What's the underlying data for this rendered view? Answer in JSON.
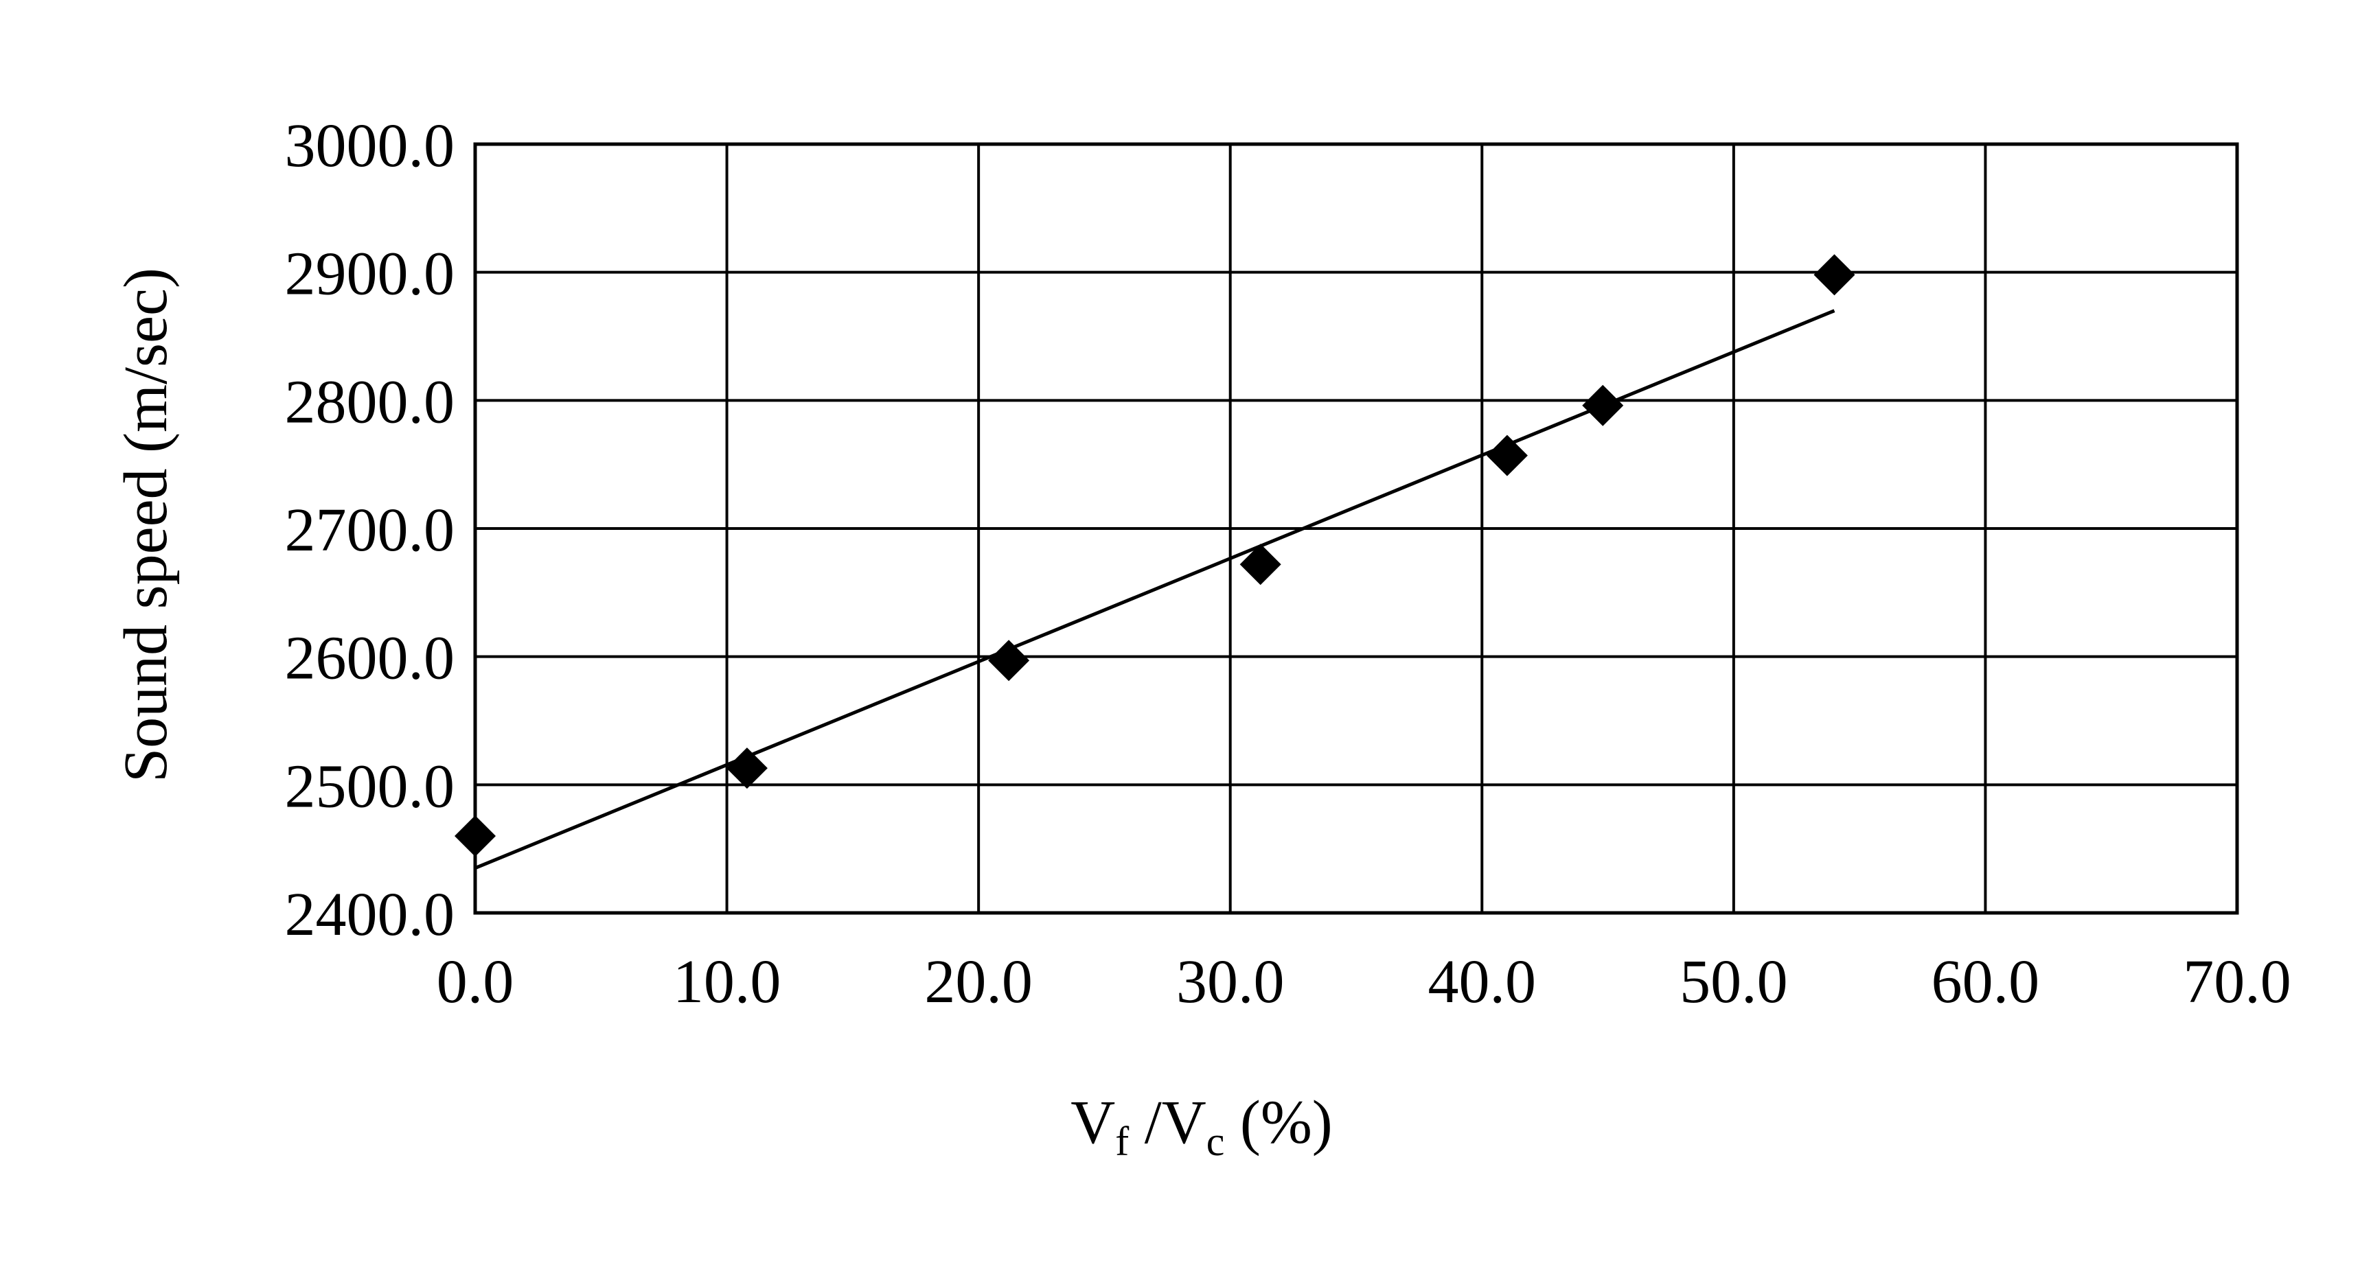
{
  "chart_data": {
    "type": "scatter",
    "xlabel": {
      "main": "V",
      "sub1": "f",
      "sep": " /V",
      "sub2": "c",
      "tail": " (%)"
    },
    "ylabel": "Sound speed (m/sec)",
    "xlim": [
      0,
      70
    ],
    "ylim": [
      2400,
      3000
    ],
    "x_ticks": [
      "0.0",
      "10.0",
      "20.0",
      "30.0",
      "40.0",
      "50.0",
      "60.0",
      "70.0"
    ],
    "y_ticks": [
      "2400.0",
      "2500.0",
      "2600.0",
      "2700.0",
      "2800.0",
      "2900.0",
      "3000.0"
    ],
    "grid": true,
    "marker": "diamond",
    "series": [
      {
        "points": [
          {
            "x": 0.0,
            "y": 2460
          },
          {
            "x": 10.8,
            "y": 2513
          },
          {
            "x": 21.2,
            "y": 2597
          },
          {
            "x": 31.2,
            "y": 2672
          },
          {
            "x": 41.0,
            "y": 2757
          },
          {
            "x": 44.8,
            "y": 2796
          },
          {
            "x": 54.0,
            "y": 2898
          }
        ],
        "color": "#000000"
      }
    ],
    "trendline": {
      "type": "linear",
      "from": {
        "x": 0.0,
        "y": 2435
      },
      "to": {
        "x": 54.0,
        "y": 2870
      }
    }
  }
}
